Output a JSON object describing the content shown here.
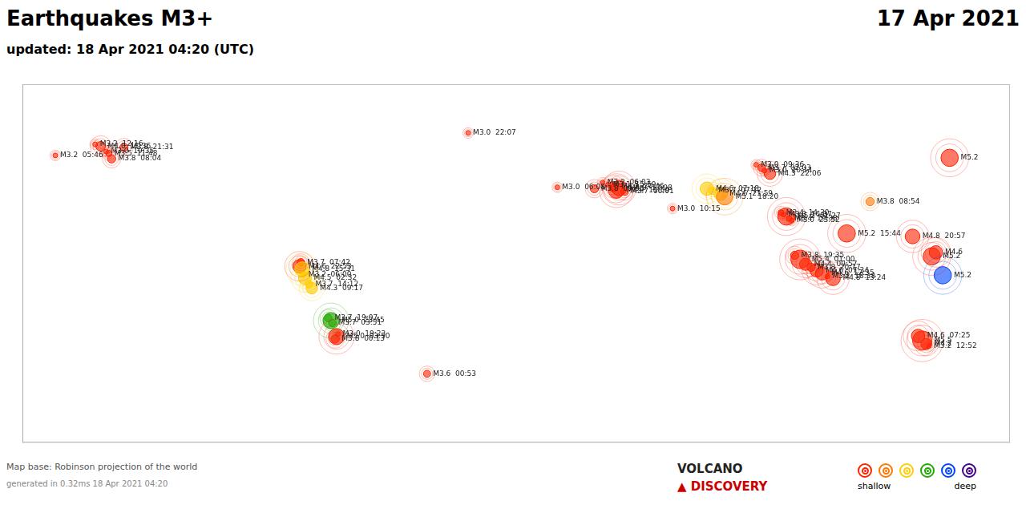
{
  "chart_data": {
    "type": "scatter",
    "title": "Earthquakes M3+",
    "subtitle": "updated: 18 Apr 2021 04:20 (UTC)",
    "date_label": "17 Apr 2021",
    "map_base_text": "Map base: Robinson projection of the world",
    "generated_text": "generated in 0.32ms 18 Apr 2021 04:20",
    "logo": [
      "VOLCANO",
      "▲ DISCOVERY"
    ],
    "logo_colors": [
      "#222222",
      "#cc0000"
    ],
    "depth_legend": {
      "colors": [
        "#ff2200",
        "#ff7700",
        "#ffcc00",
        "#22aa00",
        "#0044ff",
        "#440088"
      ],
      "labels": [
        "shallow",
        "deep"
      ]
    },
    "xlim": [
      -180,
      180
    ],
    "ylim": [
      -90,
      90
    ],
    "tick_labels": false,
    "grid": false,
    "x": [
      -17.5,
      -153.5,
      -151.5,
      -149.5,
      -148.5,
      -143.0,
      -147.5,
      -168.0,
      -78.5,
      -79.0,
      -78.0,
      -77.5,
      -77.0,
      -75.5,
      -74.5,
      -68.5,
      -67.5,
      -67.0,
      -65.0,
      -65.5,
      -66.0,
      -32.5,
      15.0,
      28.5,
      37.5,
      35.5,
      33.5,
      31.5,
      36.5,
      39.5,
      57.0,
      69.5,
      71.5,
      74.5,
      76.0,
      87.5,
      89.5,
      90.5,
      92.5,
      96.5,
      97.5,
      98.5,
      99.5,
      100.5,
      101.5,
      103.5,
      105.5,
      107.5,
      109.5,
      111.5,
      113.5,
      115.5,
      120.5,
      129.0,
      144.5,
      146.5,
      148.0,
      149.5,
      150.5,
      151.5,
      153.0,
      155.5,
      158.0
    ],
    "values": [
      65.5,
      59.8,
      58.8,
      56.2,
      55.2,
      58.2,
      52.5,
      54.2,
      0.5,
      -1.5,
      -3.0,
      -5.5,
      -7.5,
      -10.5,
      -12.5,
      -27.5,
      -28.8,
      -30.0,
      -35.5,
      -36.8,
      -38.0,
      -55.5,
      38.2,
      37.5,
      37.8,
      38.5,
      39.5,
      40.5,
      36.5,
      36.0,
      27.5,
      37.5,
      36.5,
      35.0,
      33.5,
      49.5,
      48.0,
      46.5,
      45.0,
      25.5,
      24.5,
      23.5,
      22.5,
      21.5,
      4.0,
      2.0,
      -0.5,
      -2.0,
      -3.5,
      -5.0,
      -6.5,
      -7.5,
      15.0,
      31.0,
      13.5,
      -36.5,
      -38.8,
      -40.5,
      -41.5,
      3.5,
      5.5,
      -6.0,
      53.0
    ],
    "sizes": [
      3.0,
      3.2,
      4.0,
      3.0,
      3.5,
      3.8,
      3.8,
      3.2,
      3.7,
      4.6,
      4.8,
      3.2,
      4.5,
      3.7,
      4.3,
      3.7,
      5.0,
      3.7,
      3.0,
      5.0,
      3.8,
      3.6,
      3.0,
      3.8,
      4.9,
      4.1,
      3.1,
      3.2,
      4.9,
      3.7,
      3.0,
      4.6,
      3.7,
      4.6,
      5.1,
      3.0,
      3.7,
      3.0,
      4.3,
      3.4,
      3.3,
      5.2,
      3.4,
      3.0,
      3.8,
      5.4,
      4.4,
      3.8,
      4.6,
      4.6,
      3.2,
      4.8,
      5.2,
      3.8,
      4.8,
      4.6,
      5.5,
      4.2,
      3.2,
      5.2,
      4.6,
      5.2,
      5.2
    ],
    "value_labels": [
      "M3.0  22:07",
      "M3.2  12:16",
      "M4.0  11:36",
      "M3.0  19:35",
      "M3.5  11:48",
      "M3.8  21:31",
      "M3.8  08:04",
      "M3.2  05:46",
      "M3.7  07:42",
      "M4.6  22:53",
      "M4.8  15:31",
      "M3.2  06:00",
      "M4.5  02:32",
      "M3.7  14:12",
      "M4.3  09:17",
      "M3.7  19:07",
      "M5.0  23:45",
      "M3.7  03:51",
      "M3.0  19:23",
      "M5.0  03:50",
      "M3.8  00:13",
      "M3.6  00:53",
      "M3.0  06:08",
      "M3.8  09:55",
      "M4.9  17:08",
      "M4.1  20:46",
      "M3.1  15:59",
      "M3.2  06:03",
      "M4.9  11:59",
      "M3.7  06:01",
      "M3.0  10:15",
      "M4.6  07:18",
      "M3.7  07:12",
      "M4.6  21:59",
      "M5.1  18:20",
      "M3.0  09:36",
      "M3.7  02:03",
      "M3.0  20:14",
      "M4.3  22:06",
      "M3.4  14:30",
      "M3.3  16:37",
      "M5.2  01:27",
      "M3.4  19:38",
      "M3.0  23:52",
      "M3.8  19:35",
      "M5.4  01:00",
      "M4.4  09:57",
      "M3.8  20:17",
      "M4.6  07:34",
      "M4.6  12:35",
      "M3.2  18:38",
      "M4.8  13:24",
      "M5.2  15:44",
      "M3.8  08:54",
      "M4.8  20:57",
      "M4.6  07:25",
      "M5.5",
      "M4.2",
      "M3.2  12:52",
      "M5.2",
      "M4.6",
      "M5.2",
      "M5.2"
    ],
    "colors": [
      "#ff2200",
      "#ff2200",
      "#ff2200",
      "#ff2200",
      "#ff2200",
      "#ff2200",
      "#ff2200",
      "#ff2200",
      "#ff2200",
      "#ff2200",
      "#ffcc00",
      "#ffcc00",
      "#ffcc00",
      "#ffcc00",
      "#ffcc00",
      "#22aa00",
      "#22aa00",
      "#22aa00",
      "#ff2200",
      "#ff2200",
      "#ff2200",
      "#ff2200",
      "#ff2200",
      "#ff2200",
      "#ff2200",
      "#ff2200",
      "#ff2200",
      "#ff2200",
      "#ff2200",
      "#ff2200",
      "#ff2200",
      "#ffcc00",
      "#ffcc00",
      "#ffcc00",
      "#ff7700",
      "#ff2200",
      "#ff2200",
      "#ff2200",
      "#ff2200",
      "#ff2200",
      "#ff2200",
      "#ff2200",
      "#ff2200",
      "#ff2200",
      "#ff2200",
      "#ff2200",
      "#ff2200",
      "#ff2200",
      "#ff2200",
      "#ff2200",
      "#ff2200",
      "#ff2200",
      "#ff2200",
      "#ff7700",
      "#ff2200",
      "#ff2200",
      "#ff2200",
      "#ff2200",
      "#ff2200",
      "#ff2200",
      "#ff2200",
      "#0044ff",
      "#ff2200"
    ]
  }
}
